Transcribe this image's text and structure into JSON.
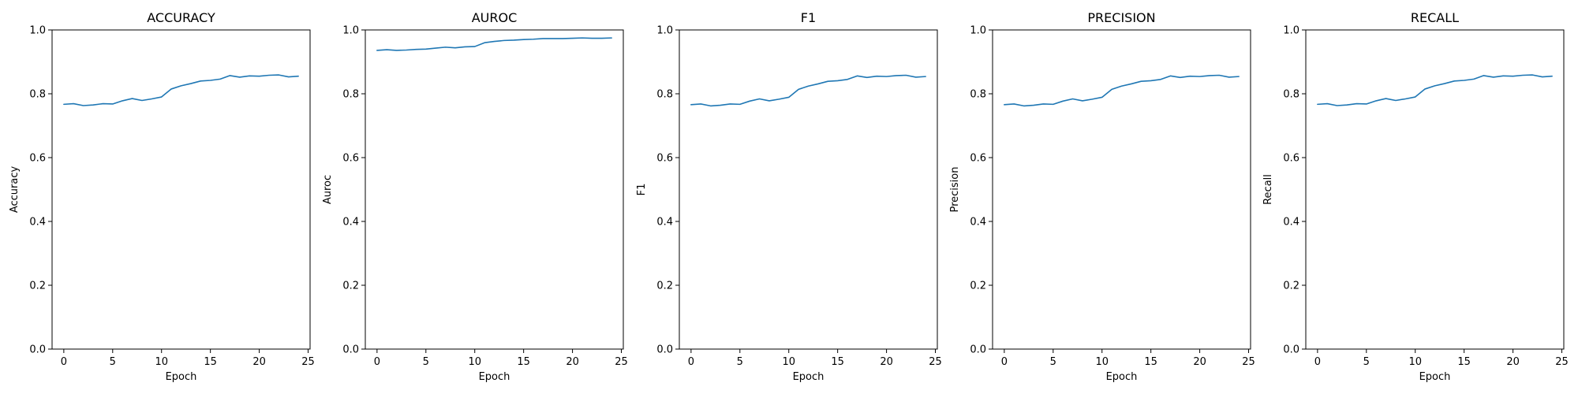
{
  "figure": {
    "line_color": "#1f77b4"
  },
  "chart_data": [
    {
      "type": "line",
      "title": "ACCURACY",
      "xlabel": "Epoch",
      "ylabel": "Accuracy",
      "xlim": [
        -1.2,
        25.2
      ],
      "ylim": [
        0.0,
        1.0
      ],
      "xticks": [
        0,
        5,
        10,
        15,
        20,
        25
      ],
      "yticks": [
        0.0,
        0.2,
        0.4,
        0.6,
        0.8,
        1.0
      ],
      "xticklabels": [
        "0",
        "5",
        "10",
        "15",
        "20",
        "25"
      ],
      "yticklabels": [
        "0.0",
        "0.2",
        "0.4",
        "0.6",
        "0.8",
        "1.0"
      ],
      "grid": false,
      "x": [
        0,
        1,
        2,
        3,
        4,
        5,
        6,
        7,
        8,
        9,
        10,
        11,
        12,
        13,
        14,
        15,
        16,
        17,
        18,
        19,
        20,
        21,
        22,
        23,
        24
      ],
      "y": [
        0.767,
        0.769,
        0.763,
        0.765,
        0.769,
        0.768,
        0.778,
        0.785,
        0.779,
        0.784,
        0.79,
        0.815,
        0.825,
        0.832,
        0.84,
        0.842,
        0.846,
        0.857,
        0.852,
        0.856,
        0.855,
        0.858,
        0.859,
        0.853,
        0.855
      ]
    },
    {
      "type": "line",
      "title": "AUROC",
      "xlabel": "Epoch",
      "ylabel": "Auroc",
      "xlim": [
        -1.2,
        25.2
      ],
      "ylim": [
        0.0,
        1.0
      ],
      "xticks": [
        0,
        5,
        10,
        15,
        20,
        25
      ],
      "yticks": [
        0.0,
        0.2,
        0.4,
        0.6,
        0.8,
        1.0
      ],
      "xticklabels": [
        "0",
        "5",
        "10",
        "15",
        "20",
        "25"
      ],
      "yticklabels": [
        "0.0",
        "0.2",
        "0.4",
        "0.6",
        "0.8",
        "1.0"
      ],
      "grid": false,
      "x": [
        0,
        1,
        2,
        3,
        4,
        5,
        6,
        7,
        8,
        9,
        10,
        11,
        12,
        13,
        14,
        15,
        16,
        17,
        18,
        19,
        20,
        21,
        22,
        23,
        24
      ],
      "y": [
        0.936,
        0.938,
        0.936,
        0.937,
        0.939,
        0.94,
        0.943,
        0.946,
        0.944,
        0.947,
        0.948,
        0.96,
        0.964,
        0.967,
        0.968,
        0.97,
        0.971,
        0.973,
        0.973,
        0.973,
        0.974,
        0.975,
        0.974,
        0.974,
        0.975
      ]
    },
    {
      "type": "line",
      "title": "F1",
      "xlabel": "Epoch",
      "ylabel": "F1",
      "xlim": [
        -1.2,
        25.2
      ],
      "ylim": [
        0.0,
        1.0
      ],
      "xticks": [
        0,
        5,
        10,
        15,
        20,
        25
      ],
      "yticks": [
        0.0,
        0.2,
        0.4,
        0.6,
        0.8,
        1.0
      ],
      "xticklabels": [
        "0",
        "5",
        "10",
        "15",
        "20",
        "25"
      ],
      "yticklabels": [
        "0.0",
        "0.2",
        "0.4",
        "0.6",
        "0.8",
        "1.0"
      ],
      "grid": false,
      "x": [
        0,
        1,
        2,
        3,
        4,
        5,
        6,
        7,
        8,
        9,
        10,
        11,
        12,
        13,
        14,
        15,
        16,
        17,
        18,
        19,
        20,
        21,
        22,
        23,
        24
      ],
      "y": [
        0.766,
        0.768,
        0.762,
        0.764,
        0.768,
        0.767,
        0.777,
        0.784,
        0.778,
        0.783,
        0.789,
        0.814,
        0.824,
        0.831,
        0.839,
        0.841,
        0.845,
        0.856,
        0.851,
        0.855,
        0.854,
        0.857,
        0.858,
        0.852,
        0.854
      ]
    },
    {
      "type": "line",
      "title": "PRECISION",
      "xlabel": "Epoch",
      "ylabel": "Precision",
      "xlim": [
        -1.2,
        25.2
      ],
      "ylim": [
        0.0,
        1.0
      ],
      "xticks": [
        0,
        5,
        10,
        15,
        20,
        25
      ],
      "yticks": [
        0.0,
        0.2,
        0.4,
        0.6,
        0.8,
        1.0
      ],
      "xticklabels": [
        "0",
        "5",
        "10",
        "15",
        "20",
        "25"
      ],
      "yticklabels": [
        "0.0",
        "0.2",
        "0.4",
        "0.6",
        "0.8",
        "1.0"
      ],
      "grid": false,
      "x": [
        0,
        1,
        2,
        3,
        4,
        5,
        6,
        7,
        8,
        9,
        10,
        11,
        12,
        13,
        14,
        15,
        16,
        17,
        18,
        19,
        20,
        21,
        22,
        23,
        24
      ],
      "y": [
        0.766,
        0.768,
        0.762,
        0.764,
        0.768,
        0.767,
        0.777,
        0.784,
        0.778,
        0.783,
        0.789,
        0.814,
        0.824,
        0.831,
        0.839,
        0.841,
        0.845,
        0.856,
        0.851,
        0.855,
        0.854,
        0.857,
        0.858,
        0.852,
        0.854
      ]
    },
    {
      "type": "line",
      "title": "RECALL",
      "xlabel": "Epoch",
      "ylabel": "Recall",
      "xlim": [
        -1.2,
        25.2
      ],
      "ylim": [
        0.0,
        1.0
      ],
      "xticks": [
        0,
        5,
        10,
        15,
        20,
        25
      ],
      "yticks": [
        0.0,
        0.2,
        0.4,
        0.6,
        0.8,
        1.0
      ],
      "xticklabels": [
        "0",
        "5",
        "10",
        "15",
        "20",
        "25"
      ],
      "yticklabels": [
        "0.0",
        "0.2",
        "0.4",
        "0.6",
        "0.8",
        "1.0"
      ],
      "grid": false,
      "x": [
        0,
        1,
        2,
        3,
        4,
        5,
        6,
        7,
        8,
        9,
        10,
        11,
        12,
        13,
        14,
        15,
        16,
        17,
        18,
        19,
        20,
        21,
        22,
        23,
        24
      ],
      "y": [
        0.767,
        0.769,
        0.763,
        0.765,
        0.769,
        0.768,
        0.778,
        0.785,
        0.779,
        0.784,
        0.79,
        0.815,
        0.825,
        0.832,
        0.84,
        0.842,
        0.846,
        0.857,
        0.852,
        0.856,
        0.855,
        0.858,
        0.859,
        0.853,
        0.855
      ]
    }
  ]
}
